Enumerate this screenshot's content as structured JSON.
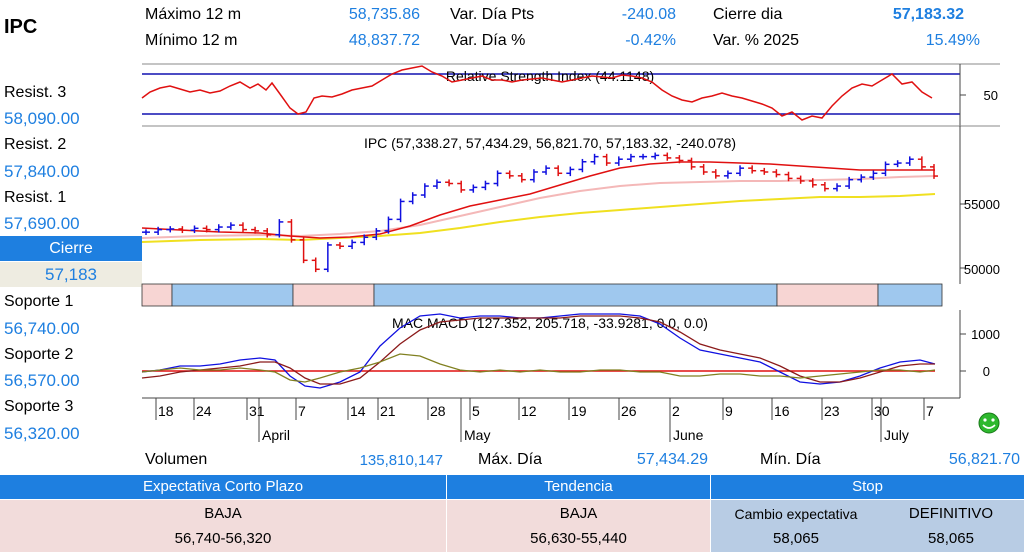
{
  "title": "IPC",
  "stats": {
    "max12_label": "Máximo 12 m",
    "max12_value": "58,735.86",
    "min12_label": "Mínimo 12 m",
    "min12_value": "48,837.72",
    "vardia_pts_label": "Var. Día Pts",
    "vardia_pts_value": "-240.08",
    "vardia_pct_label": "Var. Día %",
    "vardia_pct_value": "-0.42%",
    "cierre_dia_label": "Cierre dia",
    "cierre_dia_value": "57,183.32",
    "var2025_label": "Var. % 2025",
    "var2025_value": "15.49%"
  },
  "levels": [
    {
      "label": "Resist. 3",
      "value": "58,090.00"
    },
    {
      "label": "Resist. 2",
      "value": "57,840.00"
    },
    {
      "label": "Resist. 1",
      "value": "57,690.00"
    },
    {
      "label": "Soporte 1",
      "value": "56,740.00"
    },
    {
      "label": "Soporte 2",
      "value": "56,570.00"
    },
    {
      "label": "Soporte 3",
      "value": "56,320.00"
    }
  ],
  "cierre": {
    "label": "Cierre",
    "value": "57,183"
  },
  "charts": {
    "rsi_title": "Relative Strength Index (44.1148)",
    "rsi_axis_label": "50",
    "price_title": "IPC (57,338.27, 57,434.29, 56,821.70, 57,183.32, -240.078)",
    "price_axis": [
      "55000",
      "50000"
    ],
    "macd_title": "MAC MACD (127.352, 205.718, -33.9281, 0.0, 0.0)",
    "macd_axis": [
      "1000",
      "0"
    ],
    "days": [
      "18",
      "24",
      "31",
      "7",
      "14",
      "21",
      "28",
      "5",
      "12",
      "19",
      "26",
      "2",
      "9",
      "16",
      "23",
      "30",
      "7"
    ],
    "months": [
      "April",
      "May",
      "June",
      "July"
    ],
    "colors": {
      "up": "#1010e0",
      "down": "#e01010",
      "ma_fast": "#e01010",
      "ma_mid": "#f4b8b8",
      "ma_slow": "#f0e020",
      "trend_bull": "#9fc8ee",
      "trend_bear": "#f7d5d3"
    }
  },
  "volume": {
    "label": "Volumen",
    "value": "135,810,147",
    "max_label": "Máx. Día",
    "max_value": "57,434.29",
    "min_label": "Mín. Día",
    "min_value": "56,821.70"
  },
  "table": {
    "expectativa_header": "Expectativa Corto Plazo",
    "expectativa_value": "BAJA",
    "expectativa_range": "56,740-56,320",
    "tendencia_header": "Tendencia",
    "tendencia_value": "BAJA",
    "tendencia_range": "56,630-55,440",
    "stop_header": "Stop",
    "cambio_label": "Cambio expectativa",
    "cambio_value": "58,065",
    "definitivo_label": "DEFINITIVO",
    "definitivo_value": "58,065"
  },
  "chart_data": {
    "type": "candlestick",
    "title": "IPC (57,338.27, 57,434.29, 56,821.70, 57,183.32, -240.078)",
    "close_series": [
      52800,
      53000,
      53050,
      52950,
      53100,
      53000,
      53200,
      53350,
      53000,
      52900,
      52600,
      53600,
      52200,
      50600,
      49900,
      51800,
      51700,
      52000,
      52400,
      52900,
      53800,
      55200,
      55700,
      56400,
      56700,
      56600,
      56100,
      56300,
      56600,
      57400,
      57200,
      56900,
      57500,
      57800,
      57400,
      57700,
      58300,
      58700,
      58200,
      58500,
      58700,
      58700,
      58800,
      58600,
      58400,
      57900,
      57500,
      57200,
      57400,
      57800,
      57600,
      57500,
      57300,
      57000,
      56800,
      56500,
      56200,
      56400,
      56900,
      57100,
      57400,
      58100,
      58200,
      58500,
      57900,
      57183
    ],
    "y_ticks": [
      50000,
      55000
    ]
  }
}
